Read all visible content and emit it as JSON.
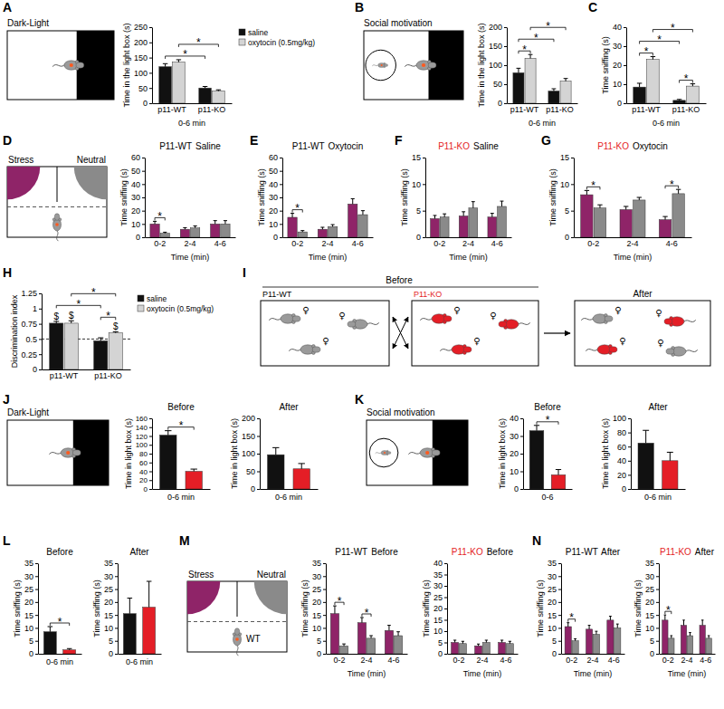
{
  "letters": [
    "A",
    "B",
    "C",
    "D",
    "E",
    "F",
    "G",
    "H",
    "I",
    "J",
    "K",
    "L",
    "M",
    "N"
  ],
  "schematic_text": {
    "dark_light": "Dark-Light",
    "social": "Social motivation",
    "stress": "Stress",
    "neutral": "Neutral",
    "wt": "WT",
    "before": "Before",
    "after": "After",
    "p11_wt": "P11-WT",
    "p11_ko": "P11-KO",
    "female": "♀"
  },
  "chart_data": [
    {
      "type": "bar",
      "categories": [
        "p11-WT",
        "p11-KO"
      ],
      "x_label": "0-6 min",
      "y_label": "Time in the light box (s)",
      "ylim": [
        0,
        250
      ],
      "yticks": [
        0,
        50,
        100,
        150,
        200,
        250
      ],
      "legend": "right",
      "series": [
        {
          "name": "saline",
          "color": "#111111",
          "values": [
            120,
            50
          ],
          "errors": [
            10,
            5
          ]
        },
        {
          "name": "oxytocin (0.5mg/kg)",
          "color": "#d4d4d4",
          "values": [
            135,
            40
          ],
          "errors": [
            8,
            4
          ]
        }
      ],
      "annotations": [
        {
          "text": "*",
          "bars": [
            0,
            2
          ]
        },
        {
          "text": "*",
          "bars": [
            1,
            3
          ]
        }
      ]
    },
    {
      "type": "bar",
      "categories": [
        "p11-WT",
        "p11-KO"
      ],
      "x_label": "0-6 min",
      "y_label": "Time in the light box (s)",
      "ylim": [
        0,
        200
      ],
      "yticks": [
        0,
        50,
        100,
        150,
        200
      ],
      "series": [
        {
          "color": "#111111",
          "values": [
            80,
            32
          ],
          "errors": [
            12,
            6
          ]
        },
        {
          "color": "#d4d4d4",
          "values": [
            118,
            58
          ],
          "errors": [
            10,
            7
          ]
        }
      ],
      "annotations": [
        {
          "text": "*",
          "bars": [
            0,
            1
          ]
        },
        {
          "text": "*",
          "bars": [
            0,
            2
          ]
        },
        {
          "text": "*",
          "bars": [
            1,
            3
          ]
        }
      ]
    },
    {
      "type": "bar",
      "categories": [
        "p11-WT",
        "p11-KO"
      ],
      "x_label": "0-6 min",
      "y_label": "Time sniffing (s)",
      "ylim": [
        0,
        40
      ],
      "yticks": [
        0,
        10,
        20,
        30,
        40
      ],
      "series": [
        {
          "color": "#111111",
          "values": [
            8.5,
            1.5
          ],
          "errors": [
            2,
            0.5
          ]
        },
        {
          "color": "#d4d4d4",
          "values": [
            23,
            9
          ],
          "errors": [
            1.5,
            1.2
          ]
        }
      ],
      "annotations": [
        {
          "text": "*",
          "bars": [
            0,
            1
          ]
        },
        {
          "text": "*",
          "bars": [
            2,
            3
          ]
        },
        {
          "text": "*",
          "bars": [
            0,
            2
          ]
        },
        {
          "text": "*",
          "bars": [
            1,
            3
          ]
        }
      ]
    },
    {
      "type": "bar",
      "title": [
        {
          "text": "P11-WT",
          "color": "#000000"
        },
        {
          "text": "Saline",
          "color": "#000000"
        }
      ],
      "categories": [
        "0-2",
        "2-4",
        "4-6"
      ],
      "x_label": "Time (min)",
      "y_label": "Time sniffing (s)",
      "ylim": [
        0,
        60
      ],
      "yticks": [
        0,
        10,
        20,
        30,
        40,
        50,
        60
      ],
      "series": [
        {
          "color": "#8f2468",
          "values": [
            10,
            6,
            10
          ],
          "errors": [
            2,
            1.2,
            2.5
          ]
        },
        {
          "color": "#8a8a8a",
          "values": [
            3,
            7,
            10
          ],
          "errors": [
            0.8,
            1.5,
            2.5
          ]
        }
      ],
      "annotations": [
        {
          "text": "*",
          "bars": [
            0,
            1
          ]
        }
      ]
    },
    {
      "type": "bar",
      "title": [
        {
          "text": "P11-WT",
          "color": "#000000"
        },
        {
          "text": "Oxytocin",
          "color": "#000000"
        }
      ],
      "categories": [
        "0-2",
        "2-4",
        "4-6"
      ],
      "x_label": "Time (min)",
      "y_label": "Time sniffing (s)",
      "ylim": [
        0,
        60
      ],
      "yticks": [
        0,
        10,
        20,
        30,
        40,
        50,
        60
      ],
      "series": [
        {
          "color": "#8f2468",
          "values": [
            15,
            6,
            25
          ],
          "errors": [
            3,
            1.5,
            4
          ]
        },
        {
          "color": "#8a8a8a",
          "values": [
            4,
            8,
            17
          ],
          "errors": [
            1,
            1.5,
            3
          ]
        }
      ],
      "annotations": [
        {
          "text": "*",
          "bars": [
            0,
            1
          ]
        }
      ]
    },
    {
      "type": "bar",
      "title": [
        {
          "text": "P11-KO",
          "color": "#e41e26"
        },
        {
          "text": "Saline",
          "color": "#000000"
        }
      ],
      "categories": [
        "0-2",
        "2-4",
        "4-6"
      ],
      "x_label": "Time (min)",
      "y_label": "Time sniffing (s)",
      "ylim": [
        0,
        15
      ],
      "yticks": [
        0,
        5,
        10,
        15
      ],
      "series": [
        {
          "color": "#8f2468",
          "values": [
            3.5,
            4,
            3.8
          ],
          "errors": [
            0.6,
            0.8,
            0.7
          ]
        },
        {
          "color": "#8a8a8a",
          "values": [
            3.8,
            5.5,
            5.8
          ],
          "errors": [
            0.6,
            1.2,
            1
          ]
        }
      ]
    },
    {
      "type": "bar",
      "title": [
        {
          "text": "P11-KO",
          "color": "#e41e26"
        },
        {
          "text": "Oxytocin",
          "color": "#000000"
        }
      ],
      "categories": [
        "0-2",
        "2-4",
        "4-6"
      ],
      "x_label": "Time (min)",
      "y_label": "Time sniffing (s)",
      "ylim": [
        0,
        15
      ],
      "yticks": [
        0,
        5,
        10,
        15
      ],
      "series": [
        {
          "color": "#8f2468",
          "values": [
            8,
            5.2,
            3.3
          ],
          "errors": [
            0.8,
            0.6,
            0.6
          ]
        },
        {
          "color": "#8a8a8a",
          "values": [
            5.5,
            7,
            8.2
          ],
          "errors": [
            0.6,
            0.5,
            0.8
          ]
        }
      ],
      "annotations": [
        {
          "text": "*",
          "bars": [
            0,
            1
          ]
        },
        {
          "text": "*",
          "bars": [
            4,
            5
          ]
        }
      ]
    },
    {
      "type": "bar",
      "categories": [
        "p11-WT",
        "p11-KO"
      ],
      "y_label": "Discrimination index",
      "ylim": [
        0,
        1.25
      ],
      "yticks": [
        0,
        0.25,
        0.5,
        0.75,
        1,
        1.25
      ],
      "chance_level": 0.5,
      "legend": "right",
      "series": [
        {
          "name": "saline",
          "color": "#111111",
          "values": [
            0.76,
            0.47
          ],
          "errors": [
            0.03,
            0.05
          ]
        },
        {
          "name": "oxytocin (0.5mg/kg)",
          "color": "#d4d4d4",
          "values": [
            0.76,
            0.6
          ],
          "errors": [
            0.04,
            0.02
          ]
        }
      ],
      "annotations": [
        {
          "text": "$",
          "bars": [
            0
          ]
        },
        {
          "text": "$",
          "bars": [
            1
          ]
        },
        {
          "text": "$",
          "bars": [
            3
          ]
        },
        {
          "text": "*",
          "bars": [
            2,
            3
          ]
        },
        {
          "text": "*",
          "bars": [
            0,
            2
          ]
        },
        {
          "text": "*",
          "bars": [
            1,
            3
          ]
        }
      ]
    },
    {
      "type": "bar",
      "title": [
        {
          "text": "Before",
          "color": "#000000"
        }
      ],
      "categories": [
        null,
        null
      ],
      "x_label": "0-6 min",
      "y_label": "Time in light box (s)",
      "ylim": [
        0,
        160
      ],
      "yticks": [
        0,
        20,
        40,
        60,
        80,
        100,
        120,
        140,
        160
      ],
      "series": [
        {
          "colors": [
            "#111111",
            "#e41e26"
          ],
          "values": [
            122,
            40
          ],
          "errors": [
            10,
            5
          ]
        }
      ],
      "annotations": [
        {
          "text": "*",
          "bars": [
            0,
            1
          ]
        }
      ]
    },
    {
      "type": "bar",
      "title": [
        {
          "text": "After",
          "color": "#000000"
        }
      ],
      "categories": [
        null,
        null
      ],
      "x_label": "0-6 min",
      "y_label": "Time in light box (s)",
      "ylim": [
        0,
        200
      ],
      "yticks": [
        0,
        50,
        100,
        150,
        200
      ],
      "series": [
        {
          "colors": [
            "#111111",
            "#e41e26"
          ],
          "values": [
            97,
            57
          ],
          "errors": [
            20,
            15
          ]
        }
      ]
    },
    {
      "type": "bar",
      "title": [
        {
          "text": "Before",
          "color": "#000000"
        }
      ],
      "categories": [
        null,
        null
      ],
      "x_label": "0-6",
      "y_label": "Time in light box (s)",
      "ylim": [
        0,
        40
      ],
      "yticks": [
        0,
        10,
        20,
        30,
        40
      ],
      "series": [
        {
          "colors": [
            "#111111",
            "#e41e26"
          ],
          "values": [
            33,
            8
          ],
          "errors": [
            3,
            3
          ]
        }
      ],
      "annotations": [
        {
          "text": "*",
          "bars": [
            0,
            1
          ]
        }
      ]
    },
    {
      "type": "bar",
      "title": [
        {
          "text": "After",
          "color": "#000000"
        }
      ],
      "categories": [
        null,
        null
      ],
      "x_label": "0-6 min",
      "y_label": "Time in light box (s)",
      "ylim": [
        0,
        100
      ],
      "yticks": [
        0,
        20,
        40,
        60,
        80,
        100
      ],
      "series": [
        {
          "colors": [
            "#111111",
            "#e41e26"
          ],
          "values": [
            65,
            40
          ],
          "errors": [
            18,
            12
          ]
        }
      ]
    },
    {
      "type": "bar",
      "title": [
        {
          "text": "Before",
          "color": "#000000"
        }
      ],
      "categories": [
        null,
        null
      ],
      "x_label": "0-6 min",
      "y_label": "Time sniffing (s)",
      "ylim": [
        0,
        35
      ],
      "yticks": [
        0,
        5,
        10,
        15,
        20,
        25,
        30,
        35
      ],
      "series": [
        {
          "colors": [
            "#111111",
            "#e41e26"
          ],
          "values": [
            8.5,
            1.5
          ],
          "errors": [
            2,
            0.5
          ]
        }
      ],
      "annotations": [
        {
          "text": "*",
          "bars": [
            0,
            1
          ]
        }
      ]
    },
    {
      "type": "bar",
      "title": [
        {
          "text": "After",
          "color": "#000000"
        }
      ],
      "categories": [
        null,
        null
      ],
      "x_label": "0-6 min",
      "y_label": "Time sniffing (s)",
      "ylim": [
        0,
        35
      ],
      "yticks": [
        0,
        5,
        10,
        15,
        20,
        25,
        30,
        35
      ],
      "series": [
        {
          "colors": [
            "#111111",
            "#e41e26"
          ],
          "values": [
            15.5,
            18
          ],
          "errors": [
            6,
            10
          ]
        }
      ]
    },
    {
      "type": "bar",
      "title": [
        {
          "text": "P11-WT",
          "color": "#000000"
        },
        {
          "text": "Before",
          "color": "#000000"
        }
      ],
      "categories": [
        "0-2",
        "2-4",
        "4-6"
      ],
      "x_label": "Time (min)",
      "y_label": "Time sniffing (s)",
      "ylim": [
        0,
        35
      ],
      "yticks": [
        0,
        5,
        10,
        15,
        20,
        25,
        30,
        35
      ],
      "series": [
        {
          "color": "#8f2468",
          "values": [
            15.5,
            12,
            9
          ],
          "errors": [
            3,
            2,
            2
          ]
        },
        {
          "color": "#8a8a8a",
          "values": [
            3,
            6,
            7
          ],
          "errors": [
            0.8,
            1,
            1.5
          ]
        }
      ],
      "annotations": [
        {
          "text": "*",
          "bars": [
            0,
            1
          ]
        },
        {
          "text": "*",
          "bars": [
            2,
            3
          ]
        }
      ]
    },
    {
      "type": "bar",
      "title": [
        {
          "text": "P11-KO",
          "color": "#e41e26"
        },
        {
          "text": "Before",
          "color": "#000000"
        }
      ],
      "categories": [
        "0-2",
        "2-4",
        "4-6"
      ],
      "x_label": "Time (min)",
      "y_label": "Time sniffing (s)",
      "ylim": [
        0,
        40
      ],
      "yticks": [
        0,
        5,
        10,
        15,
        20,
        25,
        30,
        35,
        40
      ],
      "series": [
        {
          "color": "#8f2468",
          "values": [
            5,
            3.5,
            5
          ],
          "errors": [
            1,
            0.8,
            1
          ]
        },
        {
          "color": "#8a8a8a",
          "values": [
            4.5,
            5,
            4.5
          ],
          "errors": [
            1,
            1,
            1
          ]
        }
      ]
    },
    {
      "type": "bar",
      "title": [
        {
          "text": "P11-WT",
          "color": "#000000"
        },
        {
          "text": "After",
          "color": "#000000"
        }
      ],
      "categories": [
        "0-2",
        "2-4",
        "4-6"
      ],
      "x_label": "Time (min)",
      "y_label": "Time sniffing (s)",
      "ylim": [
        0,
        35
      ],
      "yticks": [
        0,
        5,
        10,
        15,
        20,
        25,
        30,
        35
      ],
      "series": [
        {
          "color": "#8f2468",
          "values": [
            10.5,
            9.5,
            13
          ],
          "errors": [
            1.5,
            1.5,
            1.5
          ]
        },
        {
          "color": "#8a8a8a",
          "values": [
            5,
            7.5,
            10
          ],
          "errors": [
            0.8,
            1.2,
            1.5
          ]
        }
      ],
      "annotations": [
        {
          "text": "*",
          "bars": [
            0,
            1
          ]
        }
      ]
    },
    {
      "type": "bar",
      "title": [
        {
          "text": "P11-KO",
          "color": "#e41e26"
        },
        {
          "text": "After",
          "color": "#000000"
        }
      ],
      "categories": [
        "0-2",
        "2-4",
        "4-6"
      ],
      "x_label": "Time (min)",
      "y_label": "Time sniffing (s)",
      "ylim": [
        0,
        35
      ],
      "yticks": [
        0,
        5,
        10,
        15,
        20,
        25,
        30,
        35
      ],
      "series": [
        {
          "color": "#8f2468",
          "values": [
            13,
            11,
            11
          ],
          "errors": [
            2,
            2,
            2
          ]
        },
        {
          "color": "#8a8a8a",
          "values": [
            6,
            7,
            6
          ],
          "errors": [
            1,
            1.2,
            1
          ]
        }
      ],
      "annotations": [
        {
          "text": "*",
          "bars": [
            0,
            1
          ]
        }
      ]
    }
  ]
}
